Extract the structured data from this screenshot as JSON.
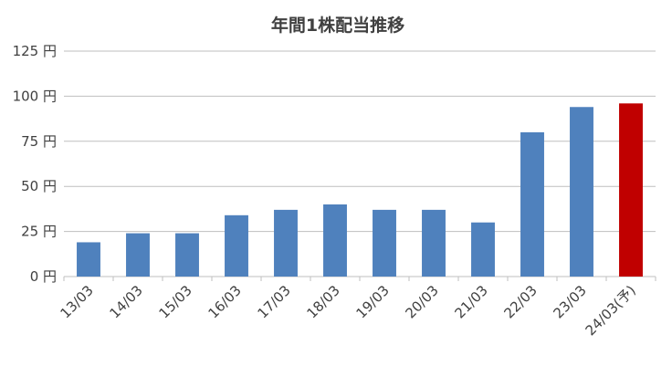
{
  "chart_data": {
    "type": "bar",
    "title": "年間1株配当推移",
    "categories": [
      "13/03",
      "14/03",
      "15/03",
      "16/03",
      "17/03",
      "18/03",
      "19/03",
      "20/03",
      "21/03",
      "22/03",
      "23/03",
      "24/03(予)"
    ],
    "values": [
      19,
      24,
      24,
      34,
      37,
      40,
      37,
      37,
      30,
      80,
      94,
      96
    ],
    "y_unit": "円",
    "ylim": [
      0,
      125
    ],
    "yticks": [
      0,
      25,
      50,
      75,
      100,
      125
    ],
    "grid": true,
    "legend": "none",
    "colors": {
      "actual": "#4f81bd",
      "forecast": "#c00000"
    },
    "forecast_index": 11
  }
}
